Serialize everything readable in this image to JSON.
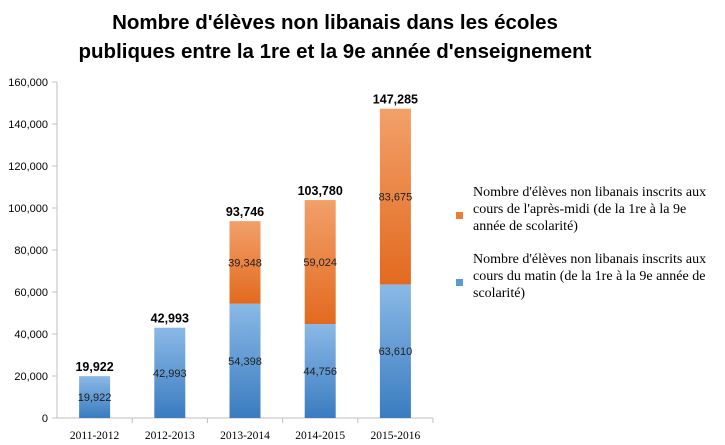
{
  "title": {
    "line1": "Nombre d'élèves non libanais dans les écoles",
    "line2": "publiques entre la 1re et la 9e année d'enseignement"
  },
  "colors": {
    "morning": "#5b9bd5",
    "afternoon": "#ed7d31",
    "axis": "#bfbfbf",
    "text": "#000000"
  },
  "chart_data": {
    "type": "bar",
    "stacked": true,
    "title": "Nombre d'élèves non libanais dans les écoles publiques entre la 1re et la 9e année d'enseignement",
    "categories": [
      "2011-2012",
      "2012-2013",
      "2013-2014",
      "2014-2015",
      "2015-2016"
    ],
    "series": [
      {
        "name": "Nombre d'élèves non libanais inscrits aux cours du matin (de la 1re à la 9e année de scolarité)",
        "values": [
          19922,
          42993,
          54398,
          44756,
          63610
        ],
        "labels": [
          "19,922",
          "42,993",
          "54,398",
          "44,756",
          "63,610"
        ],
        "color": "#5b9bd5"
      },
      {
        "name": "Nombre d'élèves non libanais inscrits aux cours de l'après-midi (de la 1re à la 9e année de scolarité)",
        "values": [
          null,
          null,
          39348,
          59024,
          83675
        ],
        "labels": [
          "",
          "",
          "39,348",
          "59,024",
          "83,675"
        ],
        "color": "#ed7d31"
      }
    ],
    "totals": [
      "19,922",
      "42,993",
      "93,746",
      "103,780",
      "147,285"
    ],
    "ylim": [
      0,
      160000
    ],
    "yticks": [
      "0",
      "20,000",
      "40,000",
      "60,000",
      "80,000",
      "100,000",
      "120,000",
      "140,000",
      "160,000"
    ],
    "grid": false,
    "legend_position": "right"
  },
  "legend": {
    "items": [
      "Nombre d'élèves non libanais inscrits aux cours de l'après-midi (de la 1re à la 9e année de scolarité)",
      "Nombre d'élèves non libanais inscrits aux cours du matin (de la 1re à la 9e année de scolarité)"
    ]
  }
}
